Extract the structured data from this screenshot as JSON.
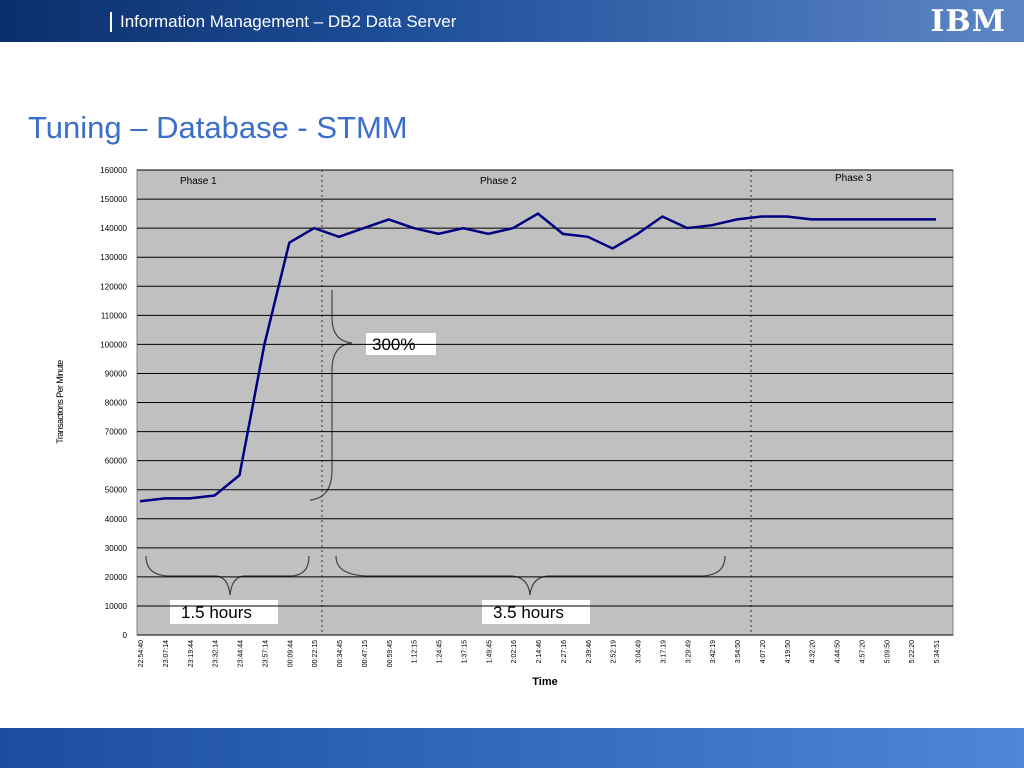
{
  "header": {
    "title": "Information Management – DB2 Data Server",
    "logo": "IBM"
  },
  "slide_title": "Tuning – Database - STMM",
  "chart_data": {
    "type": "line",
    "y_label": "Transactions Per Minute",
    "x_label": "Time",
    "categories": [
      "22:54:40",
      "23:07:14",
      "23:19:44",
      "23:32:14",
      "23:44:44",
      "23:57:14",
      "00:09:44",
      "00:22:15",
      "00:34:45",
      "00:47:15",
      "00:59:45",
      "1:12:15",
      "1:24:45",
      "1:37:15",
      "1:49:45",
      "2:02:16",
      "2:14:46",
      "2:27:16",
      "2:39:46",
      "2:52:19",
      "3:04:49",
      "3:17:19",
      "3:29:49",
      "3:42:19",
      "3:54:50",
      "4:07:20",
      "4:19:50",
      "4:32:20",
      "4:44:50",
      "4:57:20",
      "5:09:50",
      "5:22:20",
      "5:34:51"
    ],
    "series": [
      {
        "name": "Transactions Per Minute",
        "color": "#000080",
        "values": [
          46000,
          47000,
          47000,
          48000,
          55000,
          100000,
          135000,
          140000,
          137000,
          140000,
          143000,
          140000,
          138000,
          140000,
          138000,
          140000,
          145000,
          138000,
          137000,
          133000,
          138000,
          144000,
          140000,
          141000,
          143000,
          144000,
          144000,
          143000,
          143000,
          143000,
          143000,
          143000,
          143000
        ]
      }
    ],
    "ylim": [
      0,
      160000
    ],
    "yticks": [
      0,
      10000,
      20000,
      30000,
      40000,
      50000,
      60000,
      70000,
      80000,
      90000,
      100000,
      110000,
      120000,
      130000,
      140000,
      150000,
      160000
    ],
    "grid": true,
    "annotations": {
      "phases": [
        "Phase 1",
        "Phase 2",
        "Phase 3"
      ],
      "gain": "300%",
      "span1": "1.5 hours",
      "span2": "3.5 hours"
    }
  }
}
